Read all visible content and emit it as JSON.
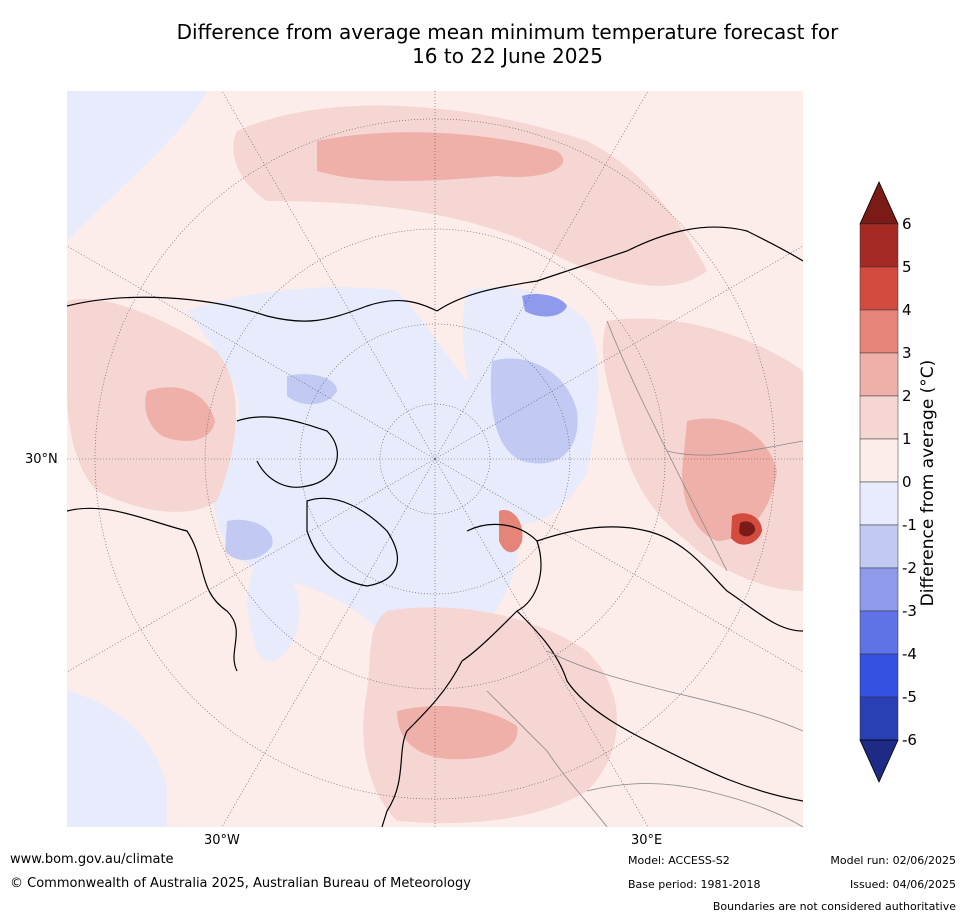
{
  "title_line1": "Difference from average mean minimum temperature forecast for",
  "title_line2": "16 to 22 June 2025",
  "map_labels": {
    "lat_30n": "30°N",
    "lon_30w": "30°W",
    "lon_30e": "30°E"
  },
  "colorbar": {
    "label": "Difference from average (°C)",
    "ticks": [
      "6",
      "5",
      "4",
      "3",
      "2",
      "1",
      "0",
      "-1",
      "-2",
      "-3",
      "-4",
      "-5",
      "-6"
    ],
    "colors": [
      "#7a1b18",
      "#a52a24",
      "#d24b3e",
      "#e5857a",
      "#efb0aa",
      "#f6d6d3",
      "#fcecea",
      "#e8ebfb",
      "#c2c9f2",
      "#8e9bec",
      "#5f72e6",
      "#3551e2",
      "#2a3fb3",
      "#1e2a85"
    ]
  },
  "footer": {
    "website": "www.bom.gov.au/climate",
    "copyright": "© Commonwealth of Australia 2025, Australian Bureau of Meteorology",
    "model": "Model: ACCESS-S2",
    "base_period": "Base period: 1981-2018",
    "model_run": "Model run: 02/06/2025",
    "issued": "Issued: 04/06/2025",
    "disclaimer": "Boundaries are not considered authoritative"
  }
}
